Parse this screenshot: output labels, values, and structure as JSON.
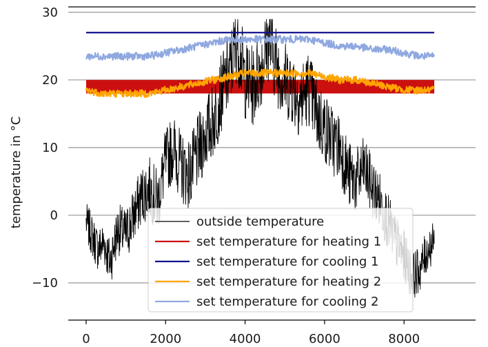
{
  "chart_data": {
    "type": "line",
    "ylabel": "temperature in °C",
    "xlabel": "",
    "xlim": [
      -450,
      9800
    ],
    "ylim": [
      -15.5,
      31
    ],
    "xticks": [
      0,
      2000,
      4000,
      6000,
      8000
    ],
    "xtick_labels": [
      "0",
      "2000",
      "4000",
      "6000",
      "8000"
    ],
    "yticks": [
      -10,
      0,
      10,
      20,
      30
    ],
    "ytick_labels": [
      "−10",
      "0",
      "10",
      "20",
      "30"
    ],
    "grid": "horizontal",
    "legend_position": "lower-center",
    "series": [
      {
        "name": "outside temperature",
        "color": "#000000",
        "x": [
          0,
          150,
          300,
          450,
          600,
          800,
          1000,
          1200,
          1400,
          1600,
          1800,
          2000,
          2200,
          2400,
          2600,
          2800,
          3000,
          3200,
          3400,
          3600,
          3800,
          4000,
          4200,
          4400,
          4600,
          4800,
          5000,
          5200,
          5400,
          5600,
          5800,
          6000,
          6200,
          6400,
          6600,
          6800,
          7000,
          7200,
          7400,
          7600,
          7800,
          8000,
          8200,
          8400,
          8600,
          8760
        ],
        "y": [
          -1,
          -3,
          -5,
          -4,
          -7,
          -2,
          -3,
          0,
          3,
          4,
          2,
          8,
          10,
          7,
          6,
          9,
          12,
          14,
          18,
          21,
          26,
          20,
          19,
          22,
          26,
          22,
          20,
          19,
          17,
          19,
          15,
          13,
          11,
          10,
          6,
          5,
          7,
          4,
          2,
          -1,
          -4,
          -6,
          -9,
          -8,
          -5,
          -4
        ],
        "min": -14,
        "max": 29
      },
      {
        "name": "set temperature for heating 1",
        "color": "#cc1010",
        "x": [
          0,
          8760
        ],
        "y_low": [
          18,
          18
        ],
        "y_high": [
          20,
          20
        ]
      },
      {
        "name": "set temperature for cooling 1",
        "color": "#10108c",
        "x": [
          0,
          8760
        ],
        "y": [
          27,
          27
        ]
      },
      {
        "name": "set temperature for heating 2",
        "color": "#ffa500",
        "x": [
          0,
          400,
          800,
          1200,
          1600,
          2000,
          2400,
          2800,
          3200,
          3600,
          4000,
          4400,
          4800,
          5200,
          5600,
          6000,
          6400,
          6800,
          7200,
          7600,
          8000,
          8400,
          8760
        ],
        "y": [
          18.5,
          18,
          18,
          18,
          18,
          18.5,
          19,
          19.5,
          20,
          20.5,
          21,
          21,
          21,
          21,
          21,
          20.5,
          20,
          20,
          19.5,
          19,
          18.5,
          18.5,
          18.5
        ]
      },
      {
        "name": "set temperature for cooling 2",
        "color": "#8fa8e0",
        "x": [
          0,
          400,
          800,
          1200,
          1600,
          2000,
          2400,
          2800,
          3200,
          3600,
          4000,
          4400,
          4800,
          5200,
          5600,
          6000,
          6400,
          6800,
          7200,
          7600,
          8000,
          8400,
          8760
        ],
        "y": [
          23.5,
          23.5,
          23.5,
          23.5,
          23.5,
          24,
          24.5,
          25,
          25.5,
          26,
          26,
          26,
          26,
          26,
          26,
          25.5,
          25,
          25,
          24.5,
          24.5,
          24,
          23.5,
          23.5
        ]
      }
    ]
  }
}
